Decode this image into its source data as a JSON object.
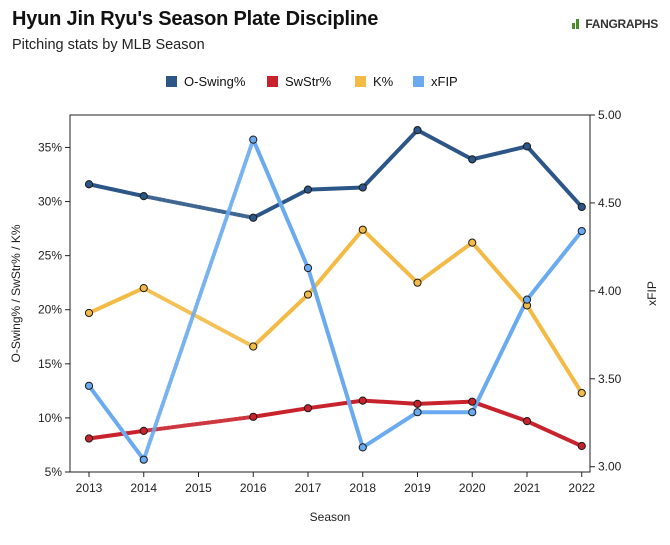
{
  "header": {
    "title": "Hyun Jin Ryu's Season Plate Discipline",
    "subtitle": "Pitching stats by MLB Season",
    "brand": "FANGRAPHS"
  },
  "chart_data": {
    "type": "line",
    "title": "Hyun Jin Ryu's Season Plate Discipline",
    "subtitle": "Pitching stats by MLB Season",
    "xlabel": "Season",
    "ylabel_left": "O-Swing% / SwStr% / K%",
    "ylabel_right": "xFIP",
    "categories": [
      "2013",
      "2014",
      "2015",
      "2016",
      "2017",
      "2018",
      "2019",
      "2020",
      "2021",
      "2022"
    ],
    "ylim_left": [
      5,
      38
    ],
    "ylim_right": [
      2.97,
      5.0
    ],
    "yticks_left": [
      "5%",
      "10%",
      "15%",
      "20%",
      "25%",
      "30%",
      "35%"
    ],
    "yticks_right": [
      "3.00",
      "3.50",
      "4.00",
      "4.50",
      "5.00"
    ],
    "grid": false,
    "legend_position": "top-center",
    "missing_categories": [
      "2015"
    ],
    "series": [
      {
        "name": "O-Swing%",
        "axis": "left",
        "color": "#2c5687",
        "values": [
          31.6,
          30.5,
          null,
          28.5,
          31.1,
          31.3,
          36.6,
          33.9,
          35.1,
          29.5
        ]
      },
      {
        "name": "SwStr%",
        "axis": "left",
        "color": "#c8232c",
        "values": [
          8.1,
          8.8,
          null,
          10.1,
          10.9,
          11.6,
          11.3,
          11.5,
          9.7,
          7.4
        ]
      },
      {
        "name": "K%",
        "axis": "left",
        "color": "#f3bb45",
        "values": [
          19.7,
          22.0,
          null,
          16.6,
          21.4,
          27.4,
          22.5,
          26.2,
          20.4,
          12.3
        ]
      },
      {
        "name": "xFIP",
        "axis": "right",
        "color": "#6aaaf0",
        "values": [
          3.46,
          3.04,
          null,
          4.86,
          4.13,
          3.11,
          3.31,
          3.31,
          3.95,
          4.34
        ]
      }
    ]
  }
}
